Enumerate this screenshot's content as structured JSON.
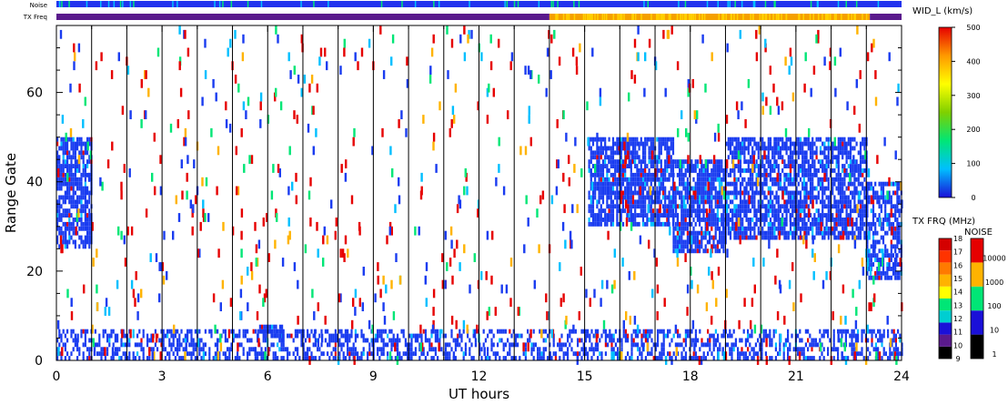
{
  "chart_data": {
    "type": "heatmap",
    "xlabel": "UT hours",
    "ylabel": "Range Gate",
    "xlim": [
      0,
      24
    ],
    "ylim": [
      0,
      75
    ],
    "x_ticks": [
      0,
      3,
      6,
      9,
      12,
      15,
      18,
      21,
      24
    ],
    "y_ticks": [
      0,
      20,
      40,
      60
    ],
    "scan_boundaries_ut": [
      1,
      2,
      3,
      4,
      5,
      6,
      7,
      8,
      9,
      10,
      11,
      12,
      13,
      14,
      15,
      16,
      17,
      18,
      19,
      20,
      21,
      22,
      23
    ],
    "strip_labels": {
      "noise": "Noise",
      "tx_freq": "TX Freq"
    },
    "tx_freq_strip": [
      {
        "from_ut": 0,
        "to_ut": 14,
        "color": "#5a1a8c"
      },
      {
        "from_ut": 14,
        "to_ut": 23.1,
        "color": "#f5a000"
      },
      {
        "from_ut": 23.1,
        "to_ut": 24,
        "color": "#5a1a8c"
      }
    ],
    "noise_strip_base_color": "#2233ee",
    "width_colorbar": {
      "title": "WID_L (km/s)",
      "min": 0,
      "max": 500,
      "ticks": [
        0,
        100,
        200,
        300,
        400,
        500
      ],
      "stops": [
        "#1a10d8",
        "#00bfff",
        "#00e676",
        "#7fd000",
        "#ffff00",
        "#ff9900",
        "#e60000"
      ]
    },
    "tx_freq_colorbar": {
      "title": "TX FRQ (MHz)",
      "ticks": [
        9,
        10,
        11,
        12,
        13,
        14,
        15,
        16,
        17,
        18
      ],
      "colors": [
        "#000000",
        "#5a1a8c",
        "#1a10d8",
        "#00ced1",
        "#00e676",
        "#ffff00",
        "#ffb300",
        "#ff7a00",
        "#ff3300",
        "#d40000"
      ]
    },
    "noise_colorbar": {
      "title": "NOISE",
      "ticks": [
        "1",
        "10",
        "100",
        "1000",
        "10000"
      ],
      "colors": [
        "#000000",
        "#1a10d8",
        "#00e676",
        "#ffb300",
        "#e60000"
      ]
    },
    "echo_regions": [
      {
        "name": "early-patch",
        "ut": [
          0.0,
          1.0
        ],
        "gates": [
          25,
          50
        ],
        "color": "#1a3cf0",
        "density": 0.7
      },
      {
        "name": "near-range-band",
        "ut": [
          0.0,
          24.0
        ],
        "gates": [
          0,
          7
        ],
        "color": "#1a3cf0",
        "density": 0.45
      },
      {
        "name": "patch-6ut",
        "ut": [
          5.7,
          6.4
        ],
        "gates": [
          5,
          8
        ],
        "color": "#1a3cf0",
        "density": 0.8
      },
      {
        "name": "afternoon-echo-a",
        "ut": [
          15.1,
          17.5
        ],
        "gates": [
          30,
          50
        ],
        "color": "#1a3cf0",
        "density": 0.75
      },
      {
        "name": "afternoon-echo-b",
        "ut": [
          17.5,
          19.0
        ],
        "gates": [
          24,
          45
        ],
        "color": "#1a3cf0",
        "density": 0.8
      },
      {
        "name": "afternoon-echo-c",
        "ut": [
          19.0,
          23.0
        ],
        "gates": [
          27,
          50
        ],
        "color": "#1a3cf0",
        "density": 0.7
      },
      {
        "name": "late-echo",
        "ut": [
          23.0,
          24.0
        ],
        "gates": [
          18,
          40
        ],
        "color": "#1a3cf0",
        "density": 0.7
      }
    ]
  }
}
